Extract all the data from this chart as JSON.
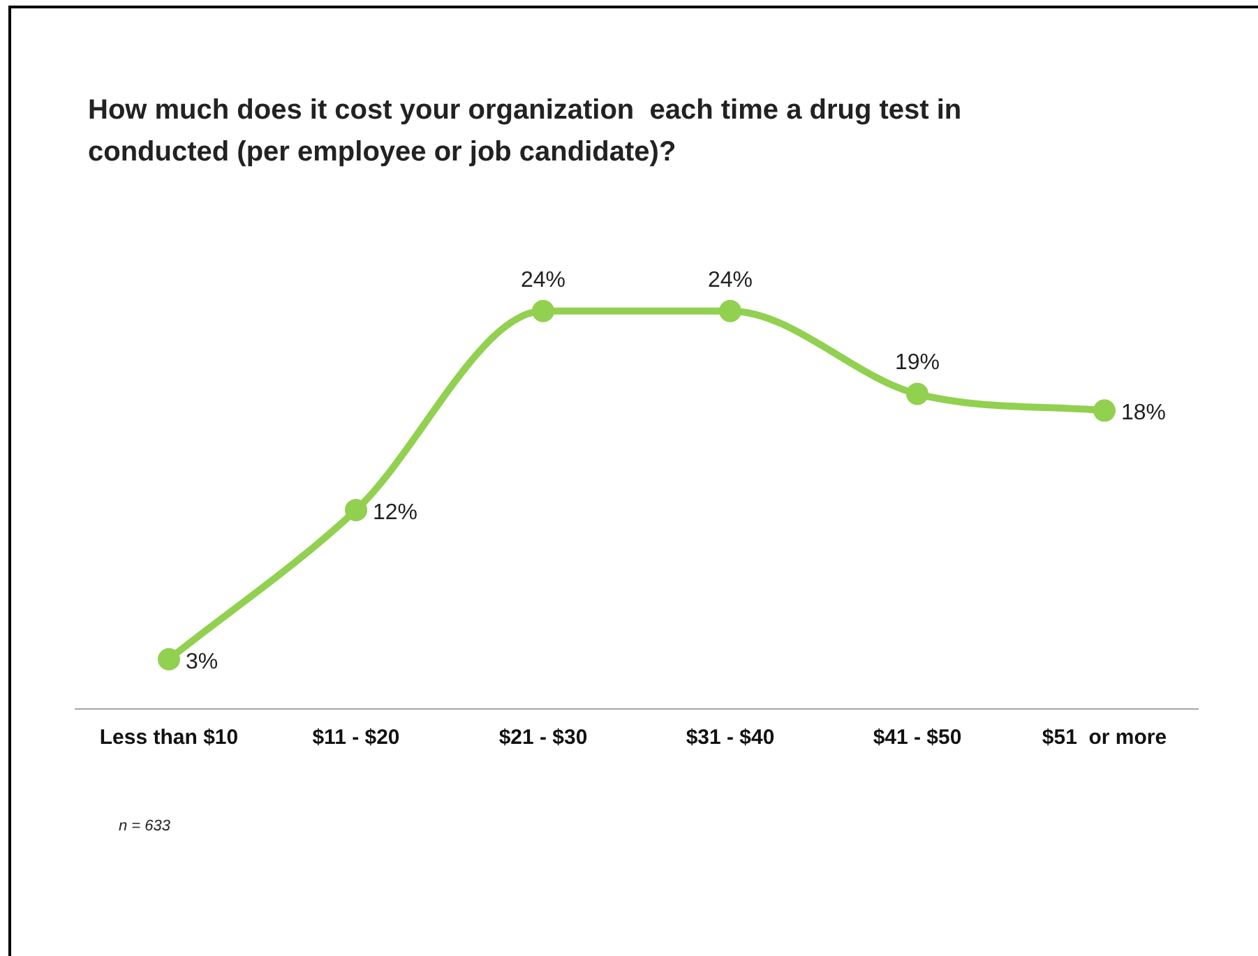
{
  "chart_data": {
    "type": "line",
    "title": "How much does it cost your organization  each time a drug test in conducted (per employee or job candidate)?",
    "categories": [
      "Less than $10",
      "$11 - $20",
      "$21 - $30",
      "$31 - $40",
      "$41 - $50",
      "$51  or more"
    ],
    "series": [
      {
        "color": "#92d050",
        "values": [
          3,
          12,
          24,
          24,
          19,
          18
        ],
        "value_labels": [
          "3%",
          "12%",
          "24%",
          "24%",
          "19%",
          "18%"
        ]
      }
    ],
    "marker": "circle",
    "grid": false,
    "annotations": [
      "n = 633"
    ]
  }
}
